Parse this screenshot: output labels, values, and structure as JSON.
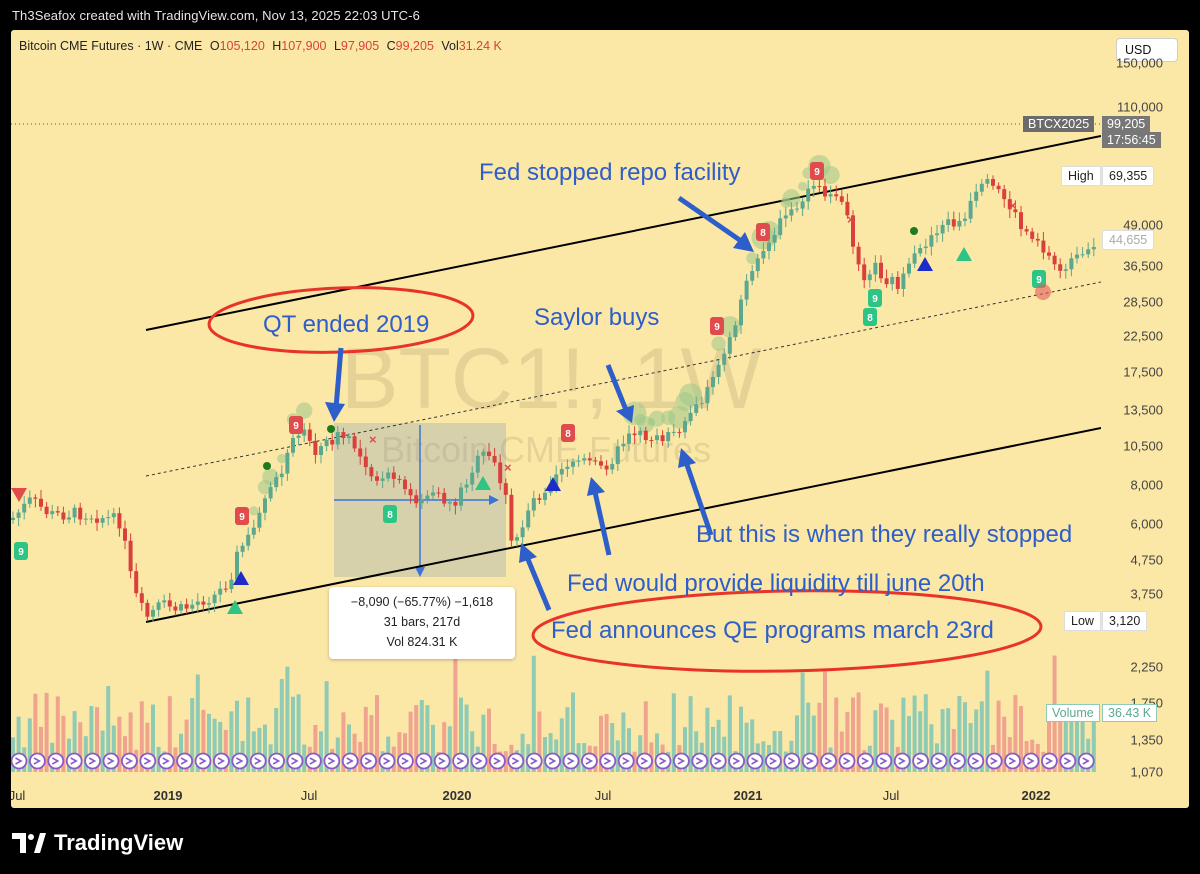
{
  "header": {
    "attribution": "Th3Seafox created with TradingView.com, Nov 13, 2025 22:03 UTC-6"
  },
  "legend": {
    "symbol": "Bitcoin CME Futures · 1W · CME",
    "open_label": "O",
    "open": "105,120",
    "high_label": "H",
    "high": "107,900",
    "low_label": "L",
    "low": "97,905",
    "close_label": "C",
    "close": "99,205",
    "vol_label": "Vol",
    "vol": "31.24 K"
  },
  "currency_button": "USD",
  "watermark": {
    "main": "BTC1!, 1W",
    "sub": "Bitcoin CME Futures"
  },
  "price_axis": [
    "150,000",
    "110,000",
    "49,000",
    "36,500",
    "28,500",
    "22,500",
    "17,500",
    "13,500",
    "10,500",
    "8,000",
    "6,000",
    "4,750",
    "3,750",
    "2,250",
    "1,750",
    "1,350",
    "1,070"
  ],
  "price_tags": {
    "contract": "BTCX2025",
    "last": "99,205",
    "countdown": "17:56:45",
    "high_label": "High",
    "high": "69,355",
    "low_label": "Low",
    "low": "3,120",
    "partial_tick": "44,655",
    "volume_label": "Volume",
    "volume": "36.43 K"
  },
  "time_axis": [
    "Jul",
    "2019",
    "Jul",
    "2020",
    "Jul",
    "2021",
    "Jul",
    "2022"
  ],
  "measure": {
    "line1": "−8,090 (−65.77%) −1,618",
    "line2": "31 bars, 217d",
    "line3": "Vol 824.31 K"
  },
  "annotations": {
    "qt_ended": "QT ended 2019",
    "repo": "Fed stopped repo facility",
    "saylor": "Saylor buys",
    "really_stopped": "But this is when they really stopped",
    "liquidity": "Fed would provide liquidity till june 20th",
    "qe": "Fed announces QE programs march 23rd"
  },
  "footer": {
    "brand": "TradingView"
  },
  "colors": {
    "background": "#fbe7a6",
    "up": "#5ba88f",
    "down": "#d9403c",
    "annotation": "#2e5ec9",
    "circle": "#e8332b"
  }
}
